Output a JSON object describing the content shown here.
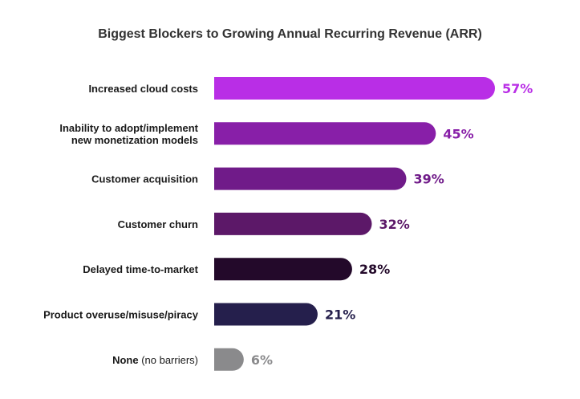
{
  "chart_data": {
    "type": "bar",
    "orientation": "horizontal",
    "title": "Biggest Blockers to Growing Annual Recurring Revenue (ARR)",
    "categories": [
      [
        "Increased cloud costs"
      ],
      [
        "Inability to adopt/implement",
        "new monetization models"
      ],
      [
        "Customer acquisition"
      ],
      [
        "Customer churn"
      ],
      [
        "Delayed time-to-market"
      ],
      [
        "Product overuse/misuse/piracy"
      ],
      [
        "None"
      ]
    ],
    "category_notes": [
      "",
      "",
      "",
      "",
      "",
      "",
      "(no barriers)"
    ],
    "values": [
      57,
      45,
      39,
      32,
      28,
      21,
      6
    ],
    "value_labels": [
      "57%",
      "45%",
      "39%",
      "32%",
      "28%",
      "21%",
      "6%"
    ],
    "colors": [
      "#b92ee6",
      "#881fa8",
      "#701b89",
      "#5c1868",
      "#23092a",
      "#251f4c",
      "#8a8a8c"
    ],
    "xlim": [
      0,
      57
    ],
    "grid": false,
    "legend": "none"
  }
}
